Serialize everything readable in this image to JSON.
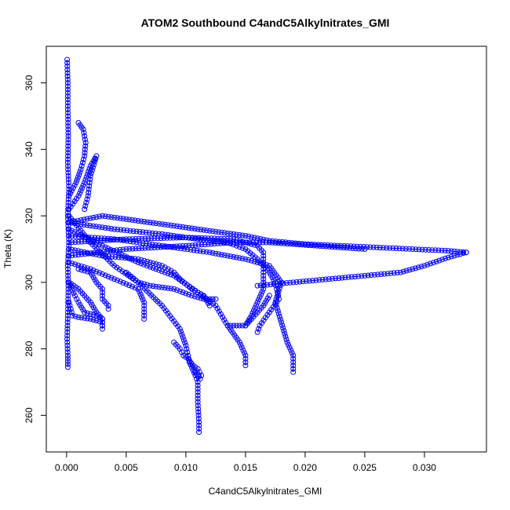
{
  "chart_data": {
    "type": "scatter",
    "title": "ATOM2 Southbound C4andC5Alkylnitrates_GMI",
    "xlabel": "C4andC5Alkylnitrates_GMI",
    "ylabel": "Theta (K)",
    "xlim": [
      -0.0017,
      0.0352
    ],
    "ylim": [
      249,
      371
    ],
    "xticks": [
      0.0,
      0.005,
      0.01,
      0.015,
      0.02,
      0.025,
      0.03
    ],
    "xtick_labels": [
      "0.000",
      "0.005",
      "0.010",
      "0.015",
      "0.020",
      "0.025",
      "0.030"
    ],
    "yticks": [
      260,
      280,
      300,
      320,
      340,
      360
    ],
    "ytick_labels": [
      "260",
      "280",
      "300",
      "320",
      "340",
      "360"
    ],
    "marker": "open-circle",
    "connected": true,
    "color": "#0000ff",
    "grid": false,
    "series": [
      {
        "points": [
          [
            0.0001,
            274.5
          ],
          [
            0.0001,
            278
          ],
          [
            5e-05,
            283
          ],
          [
            0.0001,
            290
          ],
          [
            0.00015,
            298
          ],
          [
            0.0001,
            305
          ],
          [
            0.0002,
            312
          ],
          [
            0.0001,
            320
          ],
          [
            0.0002,
            328
          ],
          [
            0.0001,
            336
          ],
          [
            0.00015,
            344
          ],
          [
            0.0001,
            352
          ],
          [
            0.0001,
            360
          ],
          [
            5e-05,
            367
          ]
        ]
      },
      {
        "points": [
          [
            0.0002,
            318
          ],
          [
            0.003,
            320
          ],
          [
            0.006,
            318.5
          ],
          [
            0.009,
            317
          ],
          [
            0.012,
            315.5
          ],
          [
            0.015,
            314
          ],
          [
            0.017,
            312.5
          ],
          [
            0.02,
            311.5
          ],
          [
            0.023,
            311
          ],
          [
            0.026,
            310.5
          ],
          [
            0.029,
            310
          ],
          [
            0.032,
            309.5
          ],
          [
            0.0335,
            309
          ]
        ]
      },
      {
        "points": [
          [
            0.0335,
            309
          ],
          [
            0.032,
            307.5
          ],
          [
            0.03,
            305
          ],
          [
            0.028,
            303
          ],
          [
            0.025,
            302
          ],
          [
            0.022,
            301
          ],
          [
            0.019,
            300
          ],
          [
            0.016,
            299
          ]
        ]
      },
      {
        "points": [
          [
            0.0002,
            320
          ],
          [
            0.002,
            312
          ],
          [
            0.004,
            305
          ],
          [
            0.006,
            300
          ],
          [
            0.008,
            293
          ],
          [
            0.0095,
            286
          ],
          [
            0.01,
            281
          ],
          [
            0.0103,
            276
          ],
          [
            0.0108,
            272
          ],
          [
            0.011,
            270
          ],
          [
            0.011,
            264
          ],
          [
            0.0111,
            258
          ],
          [
            0.0111,
            255
          ]
        ]
      },
      {
        "points": [
          [
            0.0002,
            316
          ],
          [
            0.003,
            311
          ],
          [
            0.006,
            306
          ],
          [
            0.009,
            302
          ],
          [
            0.011,
            297
          ],
          [
            0.0125,
            293
          ],
          [
            0.0135,
            287
          ],
          [
            0.0145,
            282
          ],
          [
            0.015,
            278
          ],
          [
            0.015,
            275
          ]
        ]
      },
      {
        "points": [
          [
            0.0002,
            314
          ],
          [
            0.004,
            313
          ],
          [
            0.008,
            311
          ],
          [
            0.012,
            309
          ],
          [
            0.015,
            307
          ],
          [
            0.017,
            305
          ],
          [
            0.018,
            300
          ],
          [
            0.0175,
            294
          ],
          [
            0.018,
            288
          ],
          [
            0.0185,
            282
          ],
          [
            0.019,
            278
          ],
          [
            0.019,
            273
          ]
        ]
      },
      {
        "points": [
          [
            0.0002,
            322
          ],
          [
            0.001,
            326
          ],
          [
            0.0015,
            330
          ],
          [
            0.002,
            335
          ],
          [
            0.0025,
            338
          ],
          [
            0.002,
            332
          ],
          [
            0.0018,
            326
          ],
          [
            0.0015,
            322
          ]
        ]
      },
      {
        "points": [
          [
            0.0002,
            326
          ],
          [
            0.0008,
            330
          ],
          [
            0.0012,
            334
          ],
          [
            0.0015,
            338
          ],
          [
            0.0016,
            342
          ],
          [
            0.0014,
            346
          ],
          [
            0.001,
            348
          ]
        ]
      },
      {
        "points": [
          [
            0.0002,
            300
          ],
          [
            0.001,
            298
          ],
          [
            0.0015,
            296
          ],
          [
            0.002,
            294
          ],
          [
            0.0025,
            291
          ],
          [
            0.003,
            289
          ],
          [
            0.003,
            287
          ]
        ]
      },
      {
        "points": [
          [
            0.0002,
            306
          ],
          [
            0.002,
            304
          ],
          [
            0.004,
            301
          ],
          [
            0.006,
            298
          ],
          [
            0.0065,
            294
          ],
          [
            0.0065,
            289
          ]
        ]
      },
      {
        "points": [
          [
            0.0002,
            310
          ],
          [
            0.003,
            308
          ],
          [
            0.006,
            307
          ],
          [
            0.008,
            305
          ],
          [
            0.009,
            303
          ],
          [
            0.0095,
            301
          ],
          [
            0.0105,
            298
          ],
          [
            0.0115,
            296
          ],
          [
            0.012,
            293
          ]
        ]
      },
      {
        "points": [
          [
            0.001,
            304
          ],
          [
            0.002,
            303
          ],
          [
            0.0025,
            300
          ],
          [
            0.003,
            298
          ],
          [
            0.003,
            295
          ],
          [
            0.0035,
            293
          ],
          [
            0.0035,
            292
          ]
        ]
      },
      {
        "points": [
          [
            0.0002,
            312
          ],
          [
            0.005,
            313
          ],
          [
            0.01,
            313.5
          ],
          [
            0.014,
            313
          ],
          [
            0.016,
            311
          ],
          [
            0.0165,
            309
          ],
          [
            0.0165,
            306
          ],
          [
            0.0165,
            302
          ],
          [
            0.0165,
            298
          ],
          [
            0.016,
            294
          ],
          [
            0.0155,
            290
          ],
          [
            0.015,
            287
          ],
          [
            0.0135,
            287
          ]
        ]
      },
      {
        "points": [
          [
            0.017,
            296
          ],
          [
            0.0165,
            293
          ],
          [
            0.016,
            291
          ],
          [
            0.0155,
            289
          ],
          [
            0.015,
            287
          ]
        ]
      },
      {
        "points": [
          [
            0.0002,
            318
          ],
          [
            0.004,
            316
          ],
          [
            0.008,
            314.5
          ],
          [
            0.011,
            313
          ],
          [
            0.0135,
            312
          ],
          [
            0.015,
            310
          ],
          [
            0.016,
            307
          ],
          [
            0.017,
            303
          ],
          [
            0.0175,
            300
          ],
          [
            0.0178,
            295
          ],
          [
            0.017,
            291
          ],
          [
            0.0162,
            287
          ],
          [
            0.016,
            285
          ]
        ]
      },
      {
        "points": [
          [
            0.009,
            282
          ],
          [
            0.0095,
            280
          ],
          [
            0.0098,
            278
          ],
          [
            0.0102,
            277
          ],
          [
            0.0106,
            275
          ],
          [
            0.011,
            274
          ],
          [
            0.0113,
            272
          ],
          [
            0.0112,
            271
          ],
          [
            0.0108,
            273
          ]
        ]
      },
      {
        "points": [
          [
            0.0002,
            300
          ],
          [
            0.0007,
            296
          ],
          [
            0.001,
            294
          ],
          [
            0.0015,
            291
          ],
          [
            0.0025,
            290
          ],
          [
            0.003,
            289
          ]
        ]
      },
      {
        "points": [
          [
            0.0002,
            308
          ],
          [
            0.005,
            310
          ],
          [
            0.01,
            311
          ],
          [
            0.014,
            312
          ],
          [
            0.017,
            312
          ],
          [
            0.019,
            311.5
          ],
          [
            0.021,
            311
          ],
          [
            0.023,
            310.5
          ],
          [
            0.025,
            310
          ]
        ]
      },
      {
        "points": [
          [
            0.005,
            303
          ],
          [
            0.006,
            300
          ],
          [
            0.007,
            299
          ],
          [
            0.009,
            298
          ],
          [
            0.0105,
            296
          ],
          [
            0.0115,
            295
          ],
          [
            0.0125,
            295
          ]
        ]
      },
      {
        "points": [
          [
            0.0002,
            294
          ],
          [
            0.0005,
            290
          ],
          [
            0.001,
            289.5
          ],
          [
            0.002,
            289
          ],
          [
            0.003,
            288
          ],
          [
            0.003,
            286
          ]
        ]
      }
    ]
  }
}
